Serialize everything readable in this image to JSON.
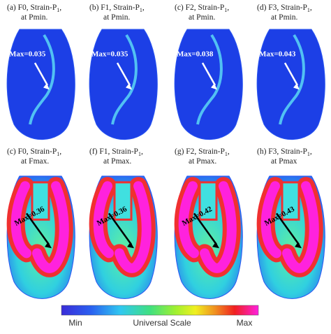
{
  "panels": [
    {
      "head": "(a) F0, Strain-P",
      "sub": "1",
      "tail": ",",
      "line2": "at Pmin.",
      "max": "Max=0.035"
    },
    {
      "head": "(b) F1, Strain-P",
      "sub": "1",
      "tail": ",",
      "line2": "at Pmin.",
      "max": "Max=0.035"
    },
    {
      "head": "(c) F2, Strain-P",
      "sub": "1",
      "tail": ",",
      "line2": "at Pmin.",
      "max": "Max=0.038"
    },
    {
      "head": "(d) F3, Strain-P",
      "sub": "1",
      "tail": ",",
      "line2": "at Pmin.",
      "max": "Max=0.043"
    },
    {
      "head": "(c) F0, Strain-P",
      "sub": "1",
      "tail": ",",
      "line2": "at Fmax.",
      "max": "Max=0.36"
    },
    {
      "head": "(f) F1, Strain-P",
      "sub": "1",
      "tail": ",",
      "line2": "at Pmax.",
      "max": "Max=0.36"
    },
    {
      "head": "(g) F2, Strain-P",
      "sub": "1",
      "tail": ",",
      "line2": "at Pmax.",
      "max": "Max=0.42"
    },
    {
      "head": "(h) F3, Strain-P",
      "sub": "1",
      "tail": ",",
      "line2": "at Pmax",
      "max": "Max=0.43"
    }
  ],
  "scale": {
    "min": "Min",
    "title": "Universal Scale",
    "max": "Max"
  }
}
